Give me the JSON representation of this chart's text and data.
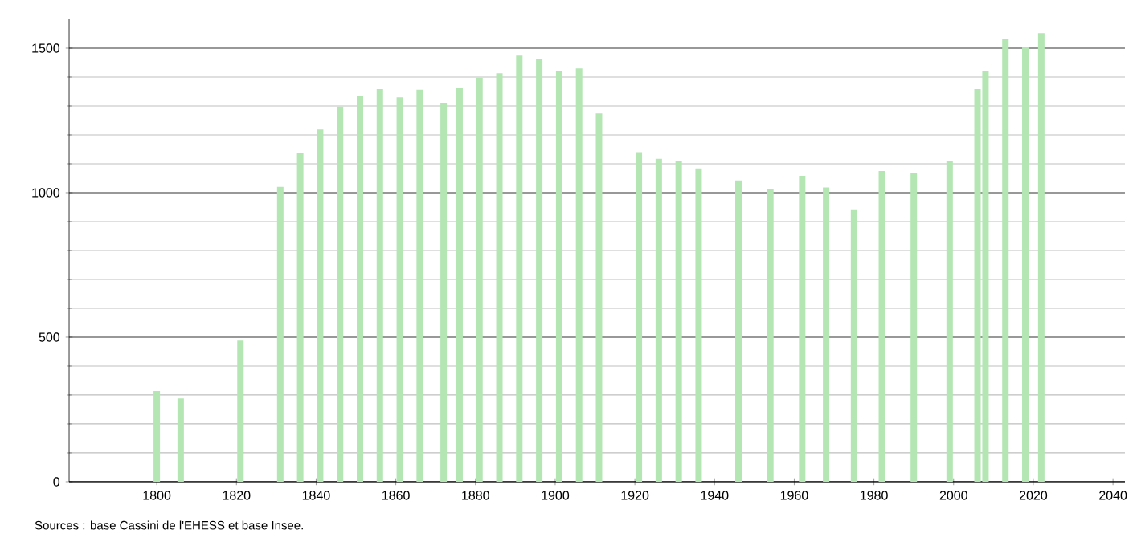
{
  "chart_data": {
    "type": "bar",
    "color": "#b3e6b3",
    "x": [
      1800,
      1806,
      1821,
      1831,
      1836,
      1841,
      1846,
      1851,
      1856,
      1861,
      1866,
      1872,
      1876,
      1881,
      1886,
      1891,
      1896,
      1901,
      1906,
      1911,
      1921,
      1926,
      1931,
      1936,
      1946,
      1954,
      1962,
      1968,
      1975,
      1982,
      1990,
      1999,
      2006,
      2008,
      2013,
      2018,
      2022
    ],
    "values": [
      314,
      288,
      488,
      1020,
      1136,
      1219,
      1298,
      1334,
      1358,
      1330,
      1356,
      1311,
      1363,
      1398,
      1413,
      1474,
      1463,
      1422,
      1430,
      1274,
      1140,
      1117,
      1108,
      1084,
      1042,
      1012,
      1058,
      1018,
      942,
      1075,
      1068,
      1108,
      1358,
      1422,
      1533,
      1505,
      1552
    ],
    "xlim": [
      1778,
      2043
    ],
    "ylim": [
      0,
      1600
    ],
    "xticks": [
      1800,
      1820,
      1840,
      1860,
      1880,
      1900,
      1920,
      1940,
      1960,
      1980,
      2000,
      2020,
      2040
    ],
    "yticks": [
      0,
      500,
      1000,
      1500
    ],
    "grid": "y",
    "annotations": [
      "Sources : base Cassini de l'EHESS et base Insee."
    ]
  }
}
